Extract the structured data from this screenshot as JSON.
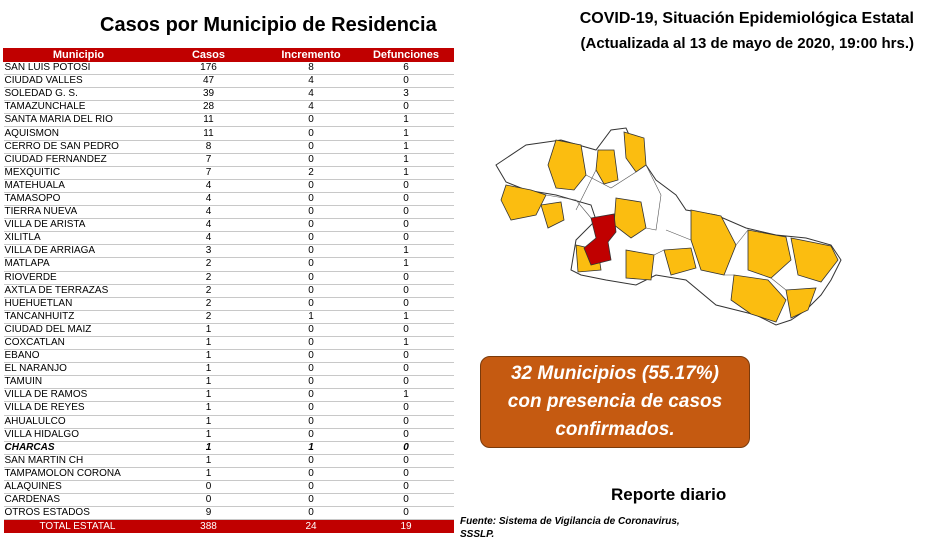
{
  "left_title": "Casos por Municipio  de Residencia",
  "header": {
    "title": "COVID-19, Situación Epidemiológica Estatal",
    "subtitle": "(Actualizada al 13 de mayo de 2020, 19:00 hrs.)"
  },
  "table": {
    "columns": [
      "Municipio",
      "Casos",
      "Incremento",
      "Defunciones"
    ],
    "rows": [
      [
        "SAN LUIS POTOSI",
        "176",
        "8",
        "6"
      ],
      [
        "CIUDAD VALLES",
        "47",
        "4",
        "0"
      ],
      [
        "SOLEDAD G. S.",
        "39",
        "4",
        "3"
      ],
      [
        "TAMAZUNCHALE",
        "28",
        "4",
        "0"
      ],
      [
        "SANTA MARIA DEL RIO",
        "11",
        "0",
        "1"
      ],
      [
        "AQUISMON",
        "11",
        "0",
        "1"
      ],
      [
        "CERRO DE SAN PEDRO",
        "8",
        "0",
        "1"
      ],
      [
        "CIUDAD FERNANDEZ",
        "7",
        "0",
        "1"
      ],
      [
        "MEXQUITIC",
        "7",
        "2",
        "1"
      ],
      [
        "MATEHUALA",
        "4",
        "0",
        "0"
      ],
      [
        "TAMASOPO",
        "4",
        "0",
        "0"
      ],
      [
        "TIERRA NUEVA",
        "4",
        "0",
        "0"
      ],
      [
        "VILLA DE ARISTA",
        "4",
        "0",
        "0"
      ],
      [
        "XILITLA",
        "4",
        "0",
        "0"
      ],
      [
        "VILLA DE ARRIAGA",
        "3",
        "0",
        "1"
      ],
      [
        "MATLAPA",
        "2",
        "0",
        "1"
      ],
      [
        "RIOVERDE",
        "2",
        "0",
        "0"
      ],
      [
        "AXTLA DE TERRAZAS",
        "2",
        "0",
        "0"
      ],
      [
        "HUEHUETLAN",
        "2",
        "0",
        "0"
      ],
      [
        "TANCANHUITZ",
        "2",
        "1",
        "1"
      ],
      [
        "CIUDAD DEL MAIZ",
        "1",
        "0",
        "0"
      ],
      [
        "COXCATLAN",
        "1",
        "0",
        "1"
      ],
      [
        "EBANO",
        "1",
        "0",
        "0"
      ],
      [
        "EL NARANJO",
        "1",
        "0",
        "0"
      ],
      [
        "TAMUIN",
        "1",
        "0",
        "0"
      ],
      [
        "VILLA DE RAMOS",
        "1",
        "0",
        "1"
      ],
      [
        "VILLA DE REYES",
        "1",
        "0",
        "0"
      ],
      [
        "AHUALULCO",
        "1",
        "0",
        "0"
      ],
      [
        "VILLA HIDALGO",
        "1",
        "0",
        "0"
      ],
      [
        "CHARCAS",
        "1",
        "1",
        "0"
      ],
      [
        "SAN MARTIN CH",
        "1",
        "0",
        "0"
      ],
      [
        "TAMPAMOLON CORONA",
        "1",
        "0",
        "0"
      ],
      [
        "ALAQUINES",
        "0",
        "0",
        "0"
      ],
      [
        "CARDENAS",
        "0",
        "0",
        "0"
      ],
      [
        "OTROS ESTADOS",
        "9",
        "0",
        "0"
      ]
    ],
    "highlight_row": "CHARCAS",
    "total": [
      "TOTAL ESTATAL",
      "388",
      "24",
      "19"
    ]
  },
  "callout": {
    "line1": "32 Municipios (55.17%)",
    "line2": "con presencia de casos",
    "line3": "confirmados."
  },
  "report_label": "Reporte diario",
  "source": {
    "line1": "Fuente: Sistema de Vigilancia de Coronavirus,",
    "line2": "SSSLP."
  },
  "colors": {
    "header_red": "#c00000",
    "municipality_with_cases": "#fbbd10",
    "capital_highlight": "#c00000",
    "no_cases": "#ffffff",
    "callout_orange": "#c55a11"
  }
}
